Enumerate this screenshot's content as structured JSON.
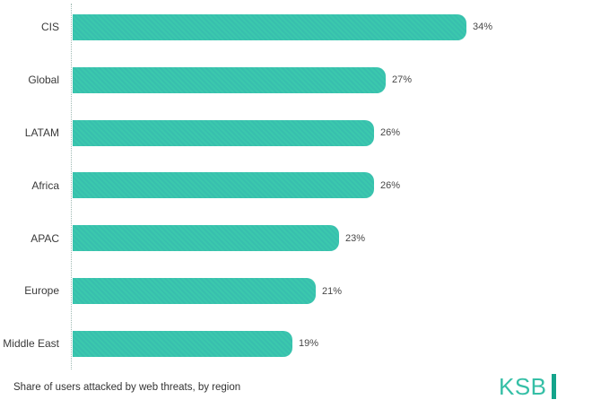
{
  "chart_data": {
    "type": "bar",
    "orientation": "horizontal",
    "title": "",
    "xlabel": "",
    "ylabel": "",
    "categories": [
      "CIS",
      "Global",
      "LATAM",
      "Africa",
      "APAC",
      "Europe",
      "Middle East"
    ],
    "values": [
      34,
      27,
      26,
      26,
      23,
      21,
      19
    ],
    "value_labels": [
      "34%",
      "27%",
      "26%",
      "26%",
      "23%",
      "21%",
      "19%"
    ],
    "xlim": [
      0,
      36
    ],
    "grid": false,
    "legend": false,
    "bar_color": "#3bc8ad"
  },
  "caption": "Share of users attacked by web threats, by region",
  "logo": {
    "text": "KSB"
  },
  "colors": {
    "bar": "#3bc8ad",
    "axis_line": "#9fbab3",
    "category_label": "#3a3a3a",
    "value_label": "#474747",
    "caption": "#333333",
    "logo_text": "#35bfa6",
    "logo_bar": "#14a48b"
  }
}
